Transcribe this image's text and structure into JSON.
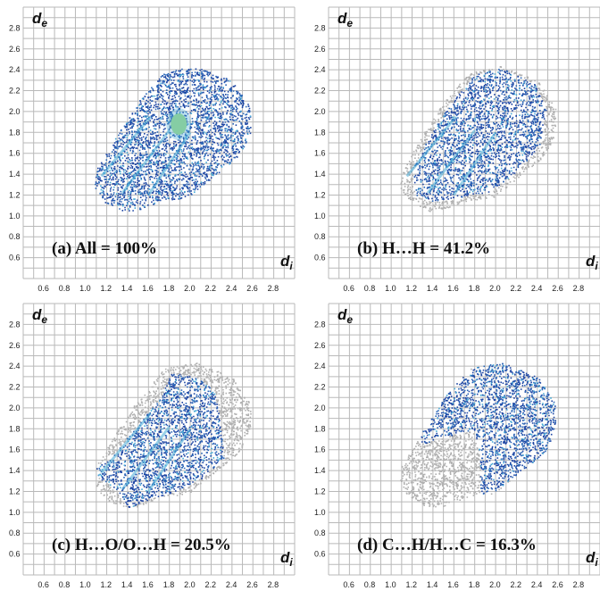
{
  "figure": {
    "axis_label_y": "d",
    "axis_label_y_sub": "e",
    "axis_label_x": "d",
    "axis_label_x_sub": "i"
  },
  "chart_data": [
    {
      "type": "scatter",
      "panel": "a",
      "caption": "(a) All = 100%",
      "x_ticks": [
        "0.6",
        "0.8",
        "1.0",
        "1.2",
        "1.4",
        "1.6",
        "1.8",
        "2.0",
        "2.2",
        "2.4",
        "2.6",
        "2.8"
      ],
      "y_ticks": [
        "0.6",
        "0.8",
        "1.0",
        "1.2",
        "1.4",
        "1.6",
        "1.8",
        "2.0",
        "2.2",
        "2.4",
        "2.6",
        "2.8"
      ],
      "xlim": [
        0.4,
        3.0
      ],
      "ylim": [
        0.4,
        3.0
      ],
      "grid": true,
      "region_full": [
        [
          1.1,
          1.45
        ],
        [
          1.3,
          1.78
        ],
        [
          1.52,
          2.12
        ],
        [
          1.75,
          2.38
        ],
        [
          2.05,
          2.44
        ],
        [
          2.4,
          2.3
        ],
        [
          2.57,
          2.05
        ],
        [
          2.58,
          1.82
        ],
        [
          2.47,
          1.58
        ],
        [
          2.22,
          1.38
        ],
        [
          1.98,
          1.18
        ],
        [
          1.72,
          1.15
        ],
        [
          1.5,
          1.06
        ],
        [
          1.36,
          1.05
        ],
        [
          1.18,
          1.13
        ],
        [
          1.08,
          1.28
        ]
      ],
      "highlight_region": [
        [
          1.1,
          1.45
        ],
        [
          1.3,
          1.78
        ],
        [
          1.52,
          2.12
        ],
        [
          1.75,
          2.38
        ],
        [
          2.05,
          2.44
        ],
        [
          2.4,
          2.3
        ],
        [
          2.57,
          2.05
        ],
        [
          2.58,
          1.82
        ],
        [
          2.47,
          1.58
        ],
        [
          2.22,
          1.38
        ],
        [
          1.98,
          1.18
        ],
        [
          1.72,
          1.15
        ],
        [
          1.5,
          1.06
        ],
        [
          1.36,
          1.05
        ],
        [
          1.18,
          1.13
        ],
        [
          1.08,
          1.28
        ]
      ],
      "hotspot": [
        1.89,
        1.88
      ]
    },
    {
      "type": "scatter",
      "panel": "b",
      "caption": "(b) H…H = 41.2%",
      "x_ticks": [
        "0.6",
        "0.8",
        "1.0",
        "1.2",
        "1.4",
        "1.6",
        "1.8",
        "2.0",
        "2.2",
        "2.4",
        "2.6",
        "2.8"
      ],
      "y_ticks": [
        "0.6",
        "0.8",
        "1.0",
        "1.2",
        "1.4",
        "1.6",
        "1.8",
        "2.0",
        "2.2",
        "2.4",
        "2.6",
        "2.8"
      ],
      "xlim": [
        0.4,
        3.0
      ],
      "ylim": [
        0.4,
        3.0
      ],
      "grid": true,
      "region_full": [
        [
          1.1,
          1.45
        ],
        [
          1.3,
          1.78
        ],
        [
          1.52,
          2.12
        ],
        [
          1.75,
          2.38
        ],
        [
          2.05,
          2.44
        ],
        [
          2.4,
          2.3
        ],
        [
          2.57,
          2.05
        ],
        [
          2.58,
          1.82
        ],
        [
          2.47,
          1.58
        ],
        [
          2.22,
          1.38
        ],
        [
          1.98,
          1.18
        ],
        [
          1.72,
          1.15
        ],
        [
          1.5,
          1.06
        ],
        [
          1.36,
          1.05
        ],
        [
          1.18,
          1.13
        ],
        [
          1.08,
          1.28
        ]
      ],
      "highlight_region": [
        [
          1.2,
          1.45
        ],
        [
          1.38,
          1.8
        ],
        [
          1.6,
          2.12
        ],
        [
          1.8,
          2.36
        ],
        [
          2.05,
          2.42
        ],
        [
          2.38,
          2.26
        ],
        [
          2.48,
          2.02
        ],
        [
          2.42,
          1.68
        ],
        [
          2.2,
          1.42
        ],
        [
          1.95,
          1.24
        ],
        [
          1.65,
          1.18
        ],
        [
          1.4,
          1.14
        ],
        [
          1.22,
          1.2
        ]
      ],
      "hotspot": null
    },
    {
      "type": "scatter",
      "panel": "c",
      "caption": "(c) H…O/O…H = 20.5%",
      "x_ticks": [
        "0.6",
        "0.8",
        "1.0",
        "1.2",
        "1.4",
        "1.6",
        "1.8",
        "2.0",
        "2.2",
        "2.4",
        "2.6",
        "2.8"
      ],
      "y_ticks": [
        "0.6",
        "0.8",
        "1.0",
        "1.2",
        "1.4",
        "1.6",
        "1.8",
        "2.0",
        "2.2",
        "2.4",
        "2.6",
        "2.8"
      ],
      "xlim": [
        0.4,
        3.0
      ],
      "ylim": [
        0.4,
        3.0
      ],
      "grid": true,
      "region_full": [
        [
          1.1,
          1.45
        ],
        [
          1.3,
          1.78
        ],
        [
          1.52,
          2.12
        ],
        [
          1.75,
          2.38
        ],
        [
          2.05,
          2.44
        ],
        [
          2.4,
          2.3
        ],
        [
          2.57,
          2.05
        ],
        [
          2.58,
          1.82
        ],
        [
          2.47,
          1.58
        ],
        [
          2.22,
          1.38
        ],
        [
          1.98,
          1.18
        ],
        [
          1.72,
          1.15
        ],
        [
          1.5,
          1.06
        ],
        [
          1.36,
          1.05
        ],
        [
          1.18,
          1.13
        ],
        [
          1.08,
          1.28
        ]
      ],
      "highlight_region": [
        [
          1.05,
          1.38
        ],
        [
          1.3,
          1.6
        ],
        [
          1.5,
          1.85
        ],
        [
          1.72,
          2.12
        ],
        [
          1.82,
          2.34
        ],
        [
          2.05,
          2.3
        ],
        [
          2.22,
          2.18
        ],
        [
          2.28,
          1.9
        ],
        [
          2.32,
          1.52
        ],
        [
          2.12,
          1.34
        ],
        [
          1.85,
          1.2
        ],
        [
          1.58,
          1.12
        ],
        [
          1.4,
          1.04
        ],
        [
          1.3,
          1.22
        ]
      ],
      "hotspot": null
    },
    {
      "type": "scatter",
      "panel": "d",
      "caption": "(d) C…H/H…C = 16.3%",
      "x_ticks": [
        "0.6",
        "0.8",
        "1.0",
        "1.2",
        "1.4",
        "1.6",
        "1.8",
        "2.0",
        "2.2",
        "2.4",
        "2.6",
        "2.8"
      ],
      "y_ticks": [
        "0.6",
        "0.8",
        "1.0",
        "1.2",
        "1.4",
        "1.6",
        "1.8",
        "2.0",
        "2.2",
        "2.4",
        "2.6",
        "2.8"
      ],
      "xlim": [
        0.4,
        3.0
      ],
      "ylim": [
        0.4,
        3.0
      ],
      "grid": true,
      "region_full": [
        [
          1.1,
          1.45
        ],
        [
          1.3,
          1.78
        ],
        [
          1.52,
          2.12
        ],
        [
          1.75,
          2.38
        ],
        [
          2.05,
          2.44
        ],
        [
          2.4,
          2.3
        ],
        [
          2.57,
          2.05
        ],
        [
          2.58,
          1.82
        ],
        [
          2.47,
          1.58
        ],
        [
          2.22,
          1.38
        ],
        [
          1.98,
          1.18
        ],
        [
          1.72,
          1.15
        ],
        [
          1.5,
          1.06
        ],
        [
          1.36,
          1.05
        ],
        [
          1.18,
          1.13
        ],
        [
          1.08,
          1.28
        ]
      ],
      "highlight_region": [
        [
          1.1,
          1.75
        ],
        [
          1.3,
          1.95
        ],
        [
          1.55,
          2.2
        ],
        [
          1.8,
          2.4
        ],
        [
          2.05,
          2.44
        ],
        [
          2.4,
          2.3
        ],
        [
          2.57,
          2.05
        ],
        [
          2.58,
          1.82
        ],
        [
          2.47,
          1.58
        ],
        [
          2.22,
          1.38
        ],
        [
          1.98,
          1.2
        ],
        [
          1.85,
          1.14
        ],
        [
          1.85,
          1.55
        ],
        [
          1.78,
          1.8
        ],
        [
          1.5,
          1.72
        ],
        [
          1.3,
          1.66
        ]
      ],
      "hotspot": null
    }
  ],
  "colors": {
    "dark_blue": "#1d45a3",
    "mid_blue": "#2a67b8",
    "cyan": "#45a9d6",
    "light_green": "#a8e089",
    "grey": "#b0b0b0",
    "grid": "#b9b9b9"
  }
}
